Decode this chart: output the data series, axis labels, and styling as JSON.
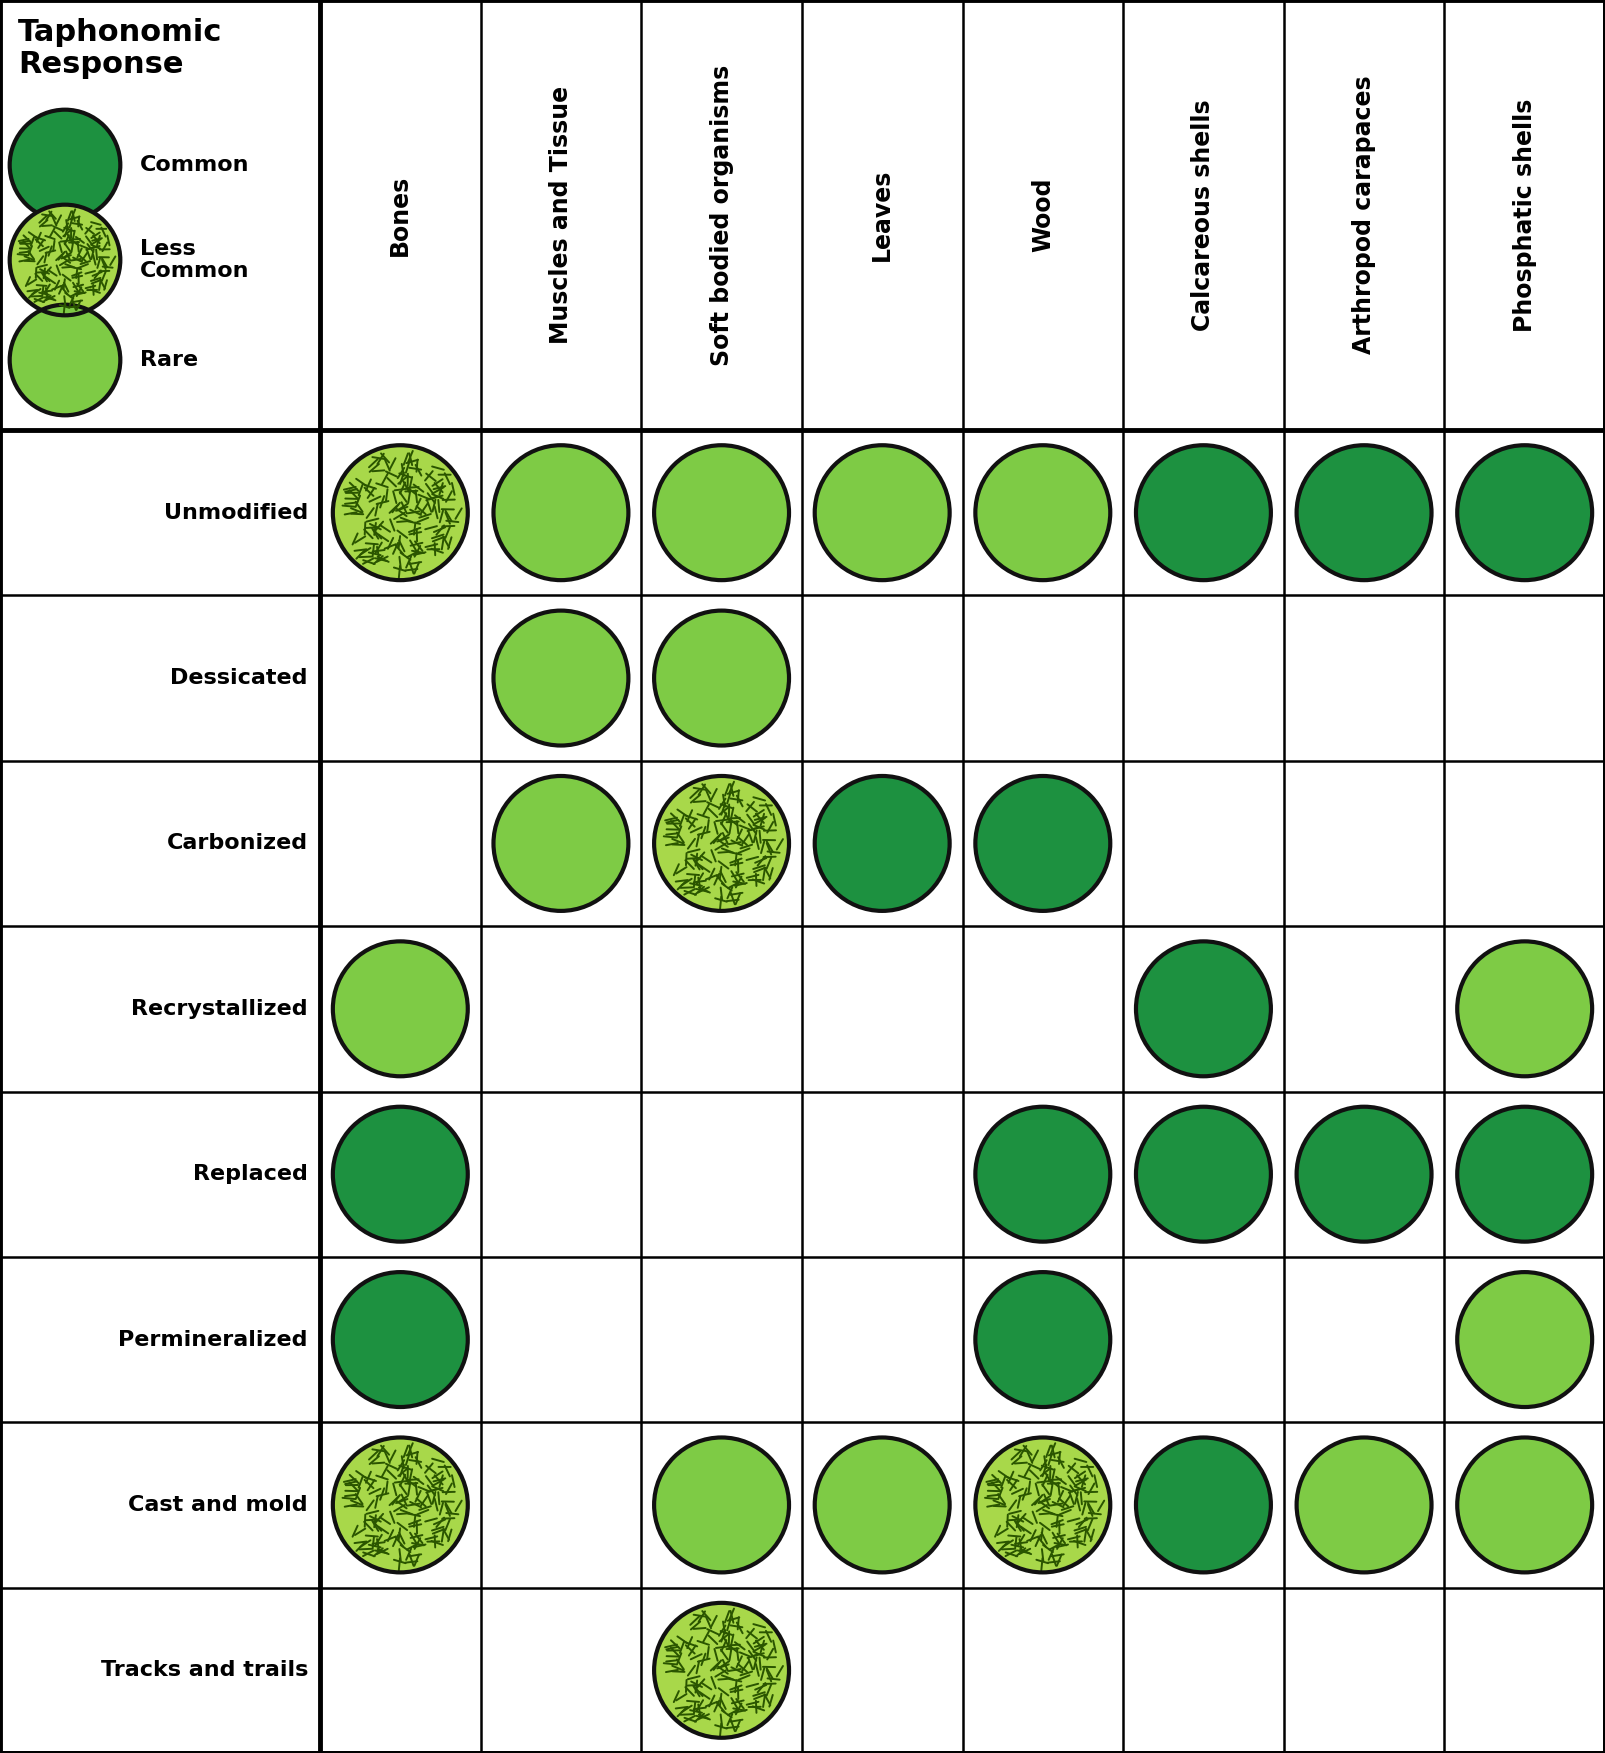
{
  "rows": [
    "Unmodified",
    "Dessicated",
    "Carbonized",
    "Recrystallized",
    "Replaced",
    "Permineralized",
    "Cast and mold",
    "Tracks and trails"
  ],
  "cols": [
    "Bones",
    "Muscles and Tissue",
    "Soft bodied organisms",
    "Leaves",
    "Wood",
    "Calcareous shells",
    "Arthropod carapaces",
    "Phosphatic shells"
  ],
  "color_common": "#1d9140",
  "color_rare": "#7ecb45",
  "color_less_common_bg": "#a8d84a",
  "color_less_common_dash": "#2a5500",
  "edge_color": "#111111",
  "grid_data": [
    [
      "less_common",
      "rare",
      "rare",
      "rare",
      "rare",
      "common",
      "common",
      "common"
    ],
    [
      null,
      "rare",
      "rare",
      null,
      null,
      null,
      null,
      null
    ],
    [
      null,
      "rare",
      "less_common",
      "common",
      "common",
      null,
      null,
      null
    ],
    [
      "rare",
      null,
      null,
      null,
      null,
      "common",
      null,
      "rare"
    ],
    [
      "common",
      null,
      null,
      null,
      "common",
      "common",
      "common",
      "common"
    ],
    [
      "common",
      null,
      null,
      null,
      "common",
      null,
      null,
      "rare"
    ],
    [
      "less_common",
      null,
      "rare",
      "rare",
      "less_common",
      "common",
      "rare",
      "rare"
    ],
    [
      null,
      null,
      "less_common",
      null,
      null,
      null,
      null,
      null
    ]
  ],
  "lw_thick": 3.5,
  "lw_thin": 1.8,
  "circle_lw": 3.0
}
